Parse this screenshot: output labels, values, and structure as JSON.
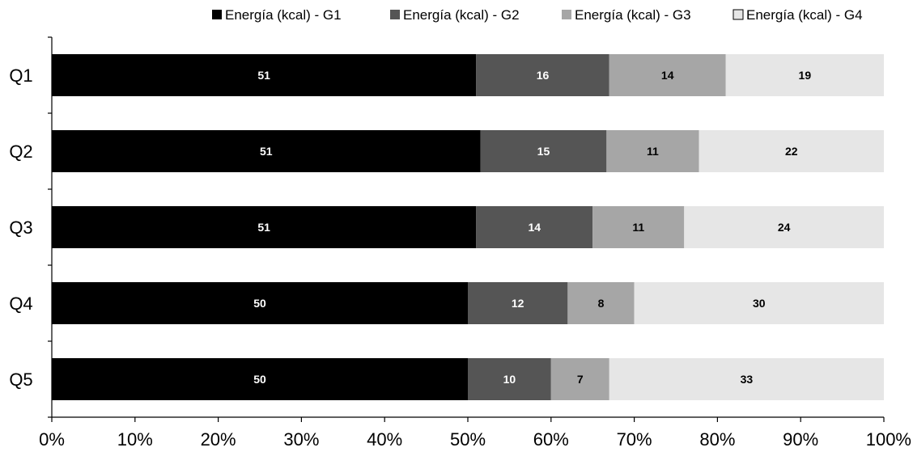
{
  "chart_data": {
    "type": "bar",
    "orientation": "horizontal",
    "stacking": "percent",
    "categories": [
      "Q1",
      "Q2",
      "Q3",
      "Q4",
      "Q5"
    ],
    "series": [
      {
        "name": "Energía (kcal) - G1",
        "color": "#000000",
        "label_color": "#ffffff",
        "values": [
          51,
          51,
          51,
          50,
          50
        ]
      },
      {
        "name": "Energía (kcal) - G2",
        "color": "#555555",
        "label_color": "#ffffff",
        "values": [
          16,
          15,
          14,
          12,
          10
        ]
      },
      {
        "name": "Energía (kcal) - G3",
        "color": "#a6a6a6",
        "label_color": "#000000",
        "values": [
          14,
          11,
          11,
          8,
          7
        ]
      },
      {
        "name": "Energía (kcal) - G4",
        "color": "#e6e6e6",
        "label_color": "#000000",
        "values": [
          19,
          22,
          24,
          30,
          33
        ]
      }
    ],
    "xlim": [
      0,
      100
    ],
    "x_ticks": [
      "0%",
      "10%",
      "20%",
      "30%",
      "40%",
      "50%",
      "60%",
      "70%",
      "80%",
      "90%",
      "100%"
    ],
    "title": "",
    "xlabel": "",
    "ylabel": "",
    "legend_position": "top",
    "grid": false
  }
}
